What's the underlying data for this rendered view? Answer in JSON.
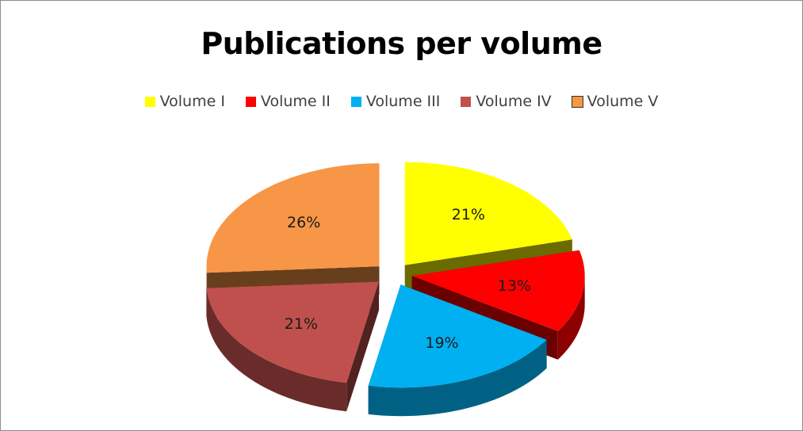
{
  "chart_data": {
    "type": "pie",
    "title": "Publications per volume",
    "legend_position": "top",
    "slices": [
      {
        "name": "Volume I",
        "value": 21,
        "label": "21%",
        "color": "#ffff00"
      },
      {
        "name": "Volume II",
        "value": 13,
        "label": "13%",
        "color": "#ff0000"
      },
      {
        "name": "Volume III",
        "value": 19,
        "label": "19%",
        "color": "#00b0f0"
      },
      {
        "name": "Volume IV",
        "value": 21,
        "label": "21%",
        "color": "#c0504d"
      },
      {
        "name": "Volume V",
        "value": 26,
        "label": "26%",
        "color": "#f79646"
      }
    ],
    "exploded": true,
    "three_d": true
  }
}
